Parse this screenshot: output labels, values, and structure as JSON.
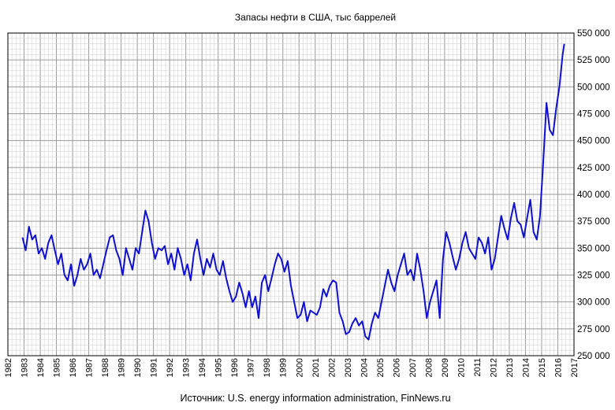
{
  "chart_data": {
    "type": "line",
    "title": "Запасы нефти в США, тыс баррелей",
    "source": "Источник: U.S. energy information administration, FinNews.ru",
    "xlabel": "",
    "ylabel": "",
    "xlim": [
      1982,
      2017
    ],
    "ylim": [
      250000,
      550000
    ],
    "y_ticks": [
      "250 000",
      "275 000",
      "300 000",
      "325 000",
      "350 000",
      "375 000",
      "400 000",
      "425 000",
      "450 000",
      "475 000",
      "500 000",
      "525 000",
      "550 000"
    ],
    "x_ticks": [
      "1982",
      "1983",
      "1984",
      "1985",
      "1986",
      "1987",
      "1988",
      "1989",
      "1990",
      "1991",
      "1992",
      "1993",
      "1994",
      "1995",
      "1996",
      "1997",
      "1998",
      "1999",
      "2000",
      "2001",
      "2002",
      "2003",
      "2004",
      "2005",
      "2006",
      "2007",
      "2008",
      "2009",
      "2010",
      "2011",
      "2012",
      "2013",
      "2014",
      "2015",
      "2016",
      "2017"
    ],
    "grid": true,
    "series": [
      {
        "name": "Запасы нефти",
        "color": "#1010d0",
        "x": [
          1982.9,
          1983.1,
          1983.3,
          1983.5,
          1983.7,
          1983.9,
          1984.1,
          1984.3,
          1984.5,
          1984.7,
          1984.9,
          1985.1,
          1985.3,
          1985.5,
          1985.7,
          1985.9,
          1986.1,
          1986.3,
          1986.5,
          1986.7,
          1986.9,
          1987.1,
          1987.3,
          1987.5,
          1987.7,
          1987.9,
          1988.1,
          1988.3,
          1988.5,
          1988.7,
          1988.9,
          1989.1,
          1989.3,
          1989.5,
          1989.7,
          1989.9,
          1990.1,
          1990.3,
          1990.5,
          1990.7,
          1990.9,
          1991.1,
          1991.3,
          1991.5,
          1991.7,
          1991.9,
          1992.1,
          1992.3,
          1992.5,
          1992.7,
          1992.9,
          1993.1,
          1993.3,
          1993.5,
          1993.7,
          1993.9,
          1994.1,
          1994.3,
          1994.5,
          1994.7,
          1994.9,
          1995.1,
          1995.3,
          1995.5,
          1995.7,
          1995.9,
          1996.1,
          1996.3,
          1996.5,
          1996.7,
          1996.9,
          1997.1,
          1997.3,
          1997.5,
          1997.7,
          1997.9,
          1998.1,
          1998.3,
          1998.5,
          1998.7,
          1998.9,
          1999.1,
          1999.3,
          1999.5,
          1999.7,
          1999.9,
          2000.1,
          2000.3,
          2000.5,
          2000.7,
          2000.9,
          2001.1,
          2001.3,
          2001.5,
          2001.7,
          2001.9,
          2002.1,
          2002.3,
          2002.5,
          2002.7,
          2002.9,
          2003.1,
          2003.3,
          2003.5,
          2003.7,
          2003.9,
          2004.1,
          2004.3,
          2004.5,
          2004.7,
          2004.9,
          2005.1,
          2005.3,
          2005.5,
          2005.7,
          2005.9,
          2006.1,
          2006.3,
          2006.5,
          2006.7,
          2006.9,
          2007.1,
          2007.3,
          2007.5,
          2007.7,
          2007.9,
          2008.1,
          2008.3,
          2008.5,
          2008.7,
          2008.9,
          2009.1,
          2009.3,
          2009.5,
          2009.7,
          2009.9,
          2010.1,
          2010.3,
          2010.5,
          2010.7,
          2010.9,
          2011.1,
          2011.3,
          2011.5,
          2011.7,
          2011.9,
          2012.1,
          2012.3,
          2012.5,
          2012.7,
          2012.9,
          2013.1,
          2013.3,
          2013.5,
          2013.7,
          2013.9,
          2014.1,
          2014.3,
          2014.5,
          2014.7,
          2014.9,
          2015.1,
          2015.3,
          2015.5,
          2015.7,
          2015.9,
          2016.1,
          2016.3,
          2016.4
        ],
        "values": [
          360000,
          348000,
          370000,
          358000,
          362000,
          345000,
          350000,
          340000,
          355000,
          362000,
          348000,
          335000,
          345000,
          325000,
          320000,
          335000,
          315000,
          325000,
          340000,
          330000,
          335000,
          345000,
          325000,
          330000,
          322000,
          335000,
          348000,
          360000,
          362000,
          348000,
          340000,
          325000,
          350000,
          340000,
          330000,
          350000,
          345000,
          365000,
          385000,
          375000,
          355000,
          340000,
          350000,
          348000,
          352000,
          335000,
          345000,
          330000,
          350000,
          340000,
          325000,
          335000,
          320000,
          345000,
          358000,
          340000,
          325000,
          340000,
          332000,
          345000,
          330000,
          325000,
          338000,
          322000,
          310000,
          300000,
          305000,
          318000,
          308000,
          295000,
          310000,
          295000,
          305000,
          285000,
          318000,
          325000,
          310000,
          322000,
          335000,
          345000,
          340000,
          328000,
          338000,
          315000,
          300000,
          285000,
          288000,
          300000,
          282000,
          292000,
          290000,
          288000,
          295000,
          312000,
          305000,
          315000,
          320000,
          318000,
          290000,
          282000,
          270000,
          272000,
          280000,
          285000,
          278000,
          282000,
          268000,
          265000,
          280000,
          290000,
          285000,
          300000,
          315000,
          330000,
          318000,
          310000,
          325000,
          335000,
          345000,
          325000,
          330000,
          320000,
          345000,
          330000,
          310000,
          285000,
          300000,
          310000,
          320000,
          285000,
          340000,
          365000,
          355000,
          342000,
          330000,
          340000,
          355000,
          365000,
          350000,
          345000,
          340000,
          360000,
          355000,
          345000,
          360000,
          330000,
          340000,
          360000,
          380000,
          368000,
          358000,
          378000,
          392000,
          375000,
          372000,
          360000,
          378000,
          395000,
          365000,
          358000,
          380000,
          430000,
          485000,
          460000,
          455000,
          480000,
          500000,
          530000,
          540000
        ]
      }
    ]
  }
}
